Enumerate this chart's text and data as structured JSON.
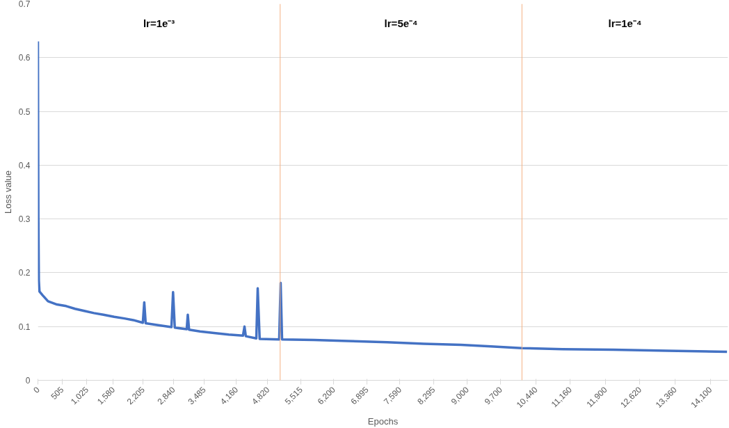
{
  "chart_data": {
    "type": "line",
    "xlabel": "Epochs",
    "ylabel": "Loss value",
    "x": [
      0,
      5,
      10,
      20,
      33,
      100,
      212,
      400,
      593,
      780,
      973,
      1175,
      1375,
      1600,
      1817,
      2000,
      2200,
      2230,
      2260,
      2500,
      2800,
      2834,
      2870,
      3120,
      3143,
      3170,
      3400,
      3694,
      4000,
      4300,
      4332,
      4360,
      4580,
      4609,
      4650,
      5060,
      5090,
      5120,
      5789,
      6500,
      7319,
      8100,
      8873,
      9500,
      10151,
      11000,
      12066,
      13200,
      14450
    ],
    "series": [
      {
        "color": "#4472c4",
        "values": [
          0.63,
          0.45,
          0.3,
          0.185,
          0.165,
          0.158,
          0.147,
          0.141,
          0.138,
          0.133,
          0.129,
          0.125,
          0.122,
          0.118,
          0.115,
          0.112,
          0.107,
          0.145,
          0.106,
          0.103,
          0.099,
          0.164,
          0.098,
          0.095,
          0.122,
          0.094,
          0.091,
          0.088,
          0.085,
          0.083,
          0.1,
          0.082,
          0.078,
          0.171,
          0.077,
          0.076,
          0.181,
          0.076,
          0.075,
          0.073,
          0.071,
          0.068,
          0.066,
          0.063,
          0.06,
          0.058,
          0.057,
          0.055,
          0.053
        ]
      }
    ],
    "xlim": [
      0,
      14470
    ],
    "ylim": [
      0,
      0.7
    ],
    "xticks": [
      {
        "value": 0,
        "label": "0"
      },
      {
        "value": 505,
        "label": "505"
      },
      {
        "value": 1025,
        "label": "1,025"
      },
      {
        "value": 1580,
        "label": "1,580"
      },
      {
        "value": 2205,
        "label": "2,205"
      },
      {
        "value": 2840,
        "label": "2,840"
      },
      {
        "value": 3485,
        "label": "3,485"
      },
      {
        "value": 4160,
        "label": "4,160"
      },
      {
        "value": 4820,
        "label": "4,820"
      },
      {
        "value": 5515,
        "label": "5,515"
      },
      {
        "value": 6200,
        "label": "6,200"
      },
      {
        "value": 6895,
        "label": "6,895"
      },
      {
        "value": 7590,
        "label": "7,590"
      },
      {
        "value": 8295,
        "label": "8,295"
      },
      {
        "value": 9000,
        "label": "9,000"
      },
      {
        "value": 9700,
        "label": "9,700"
      },
      {
        "value": 10440,
        "label": "10,440"
      },
      {
        "value": 11160,
        "label": "11,160"
      },
      {
        "value": 11900,
        "label": "11,900"
      },
      {
        "value": 12620,
        "label": "12,620"
      },
      {
        "value": 13360,
        "label": "13,360"
      },
      {
        "value": 14100,
        "label": "14,100"
      }
    ],
    "yticks": [
      0,
      0.1,
      0.2,
      0.3,
      0.4,
      0.5,
      0.6,
      0.7
    ],
    "ref_lines": [
      {
        "axis": "x",
        "value": 5080,
        "color": "#f4b183"
      },
      {
        "axis": "x",
        "value": 10150,
        "color": "#f4b183"
      }
    ],
    "annotations": [
      "lr=1e⁻³",
      "lr=5e⁻⁴",
      "lr=1e⁻⁴"
    ],
    "grid": "y",
    "marker": "none",
    "line_style": "solid"
  }
}
